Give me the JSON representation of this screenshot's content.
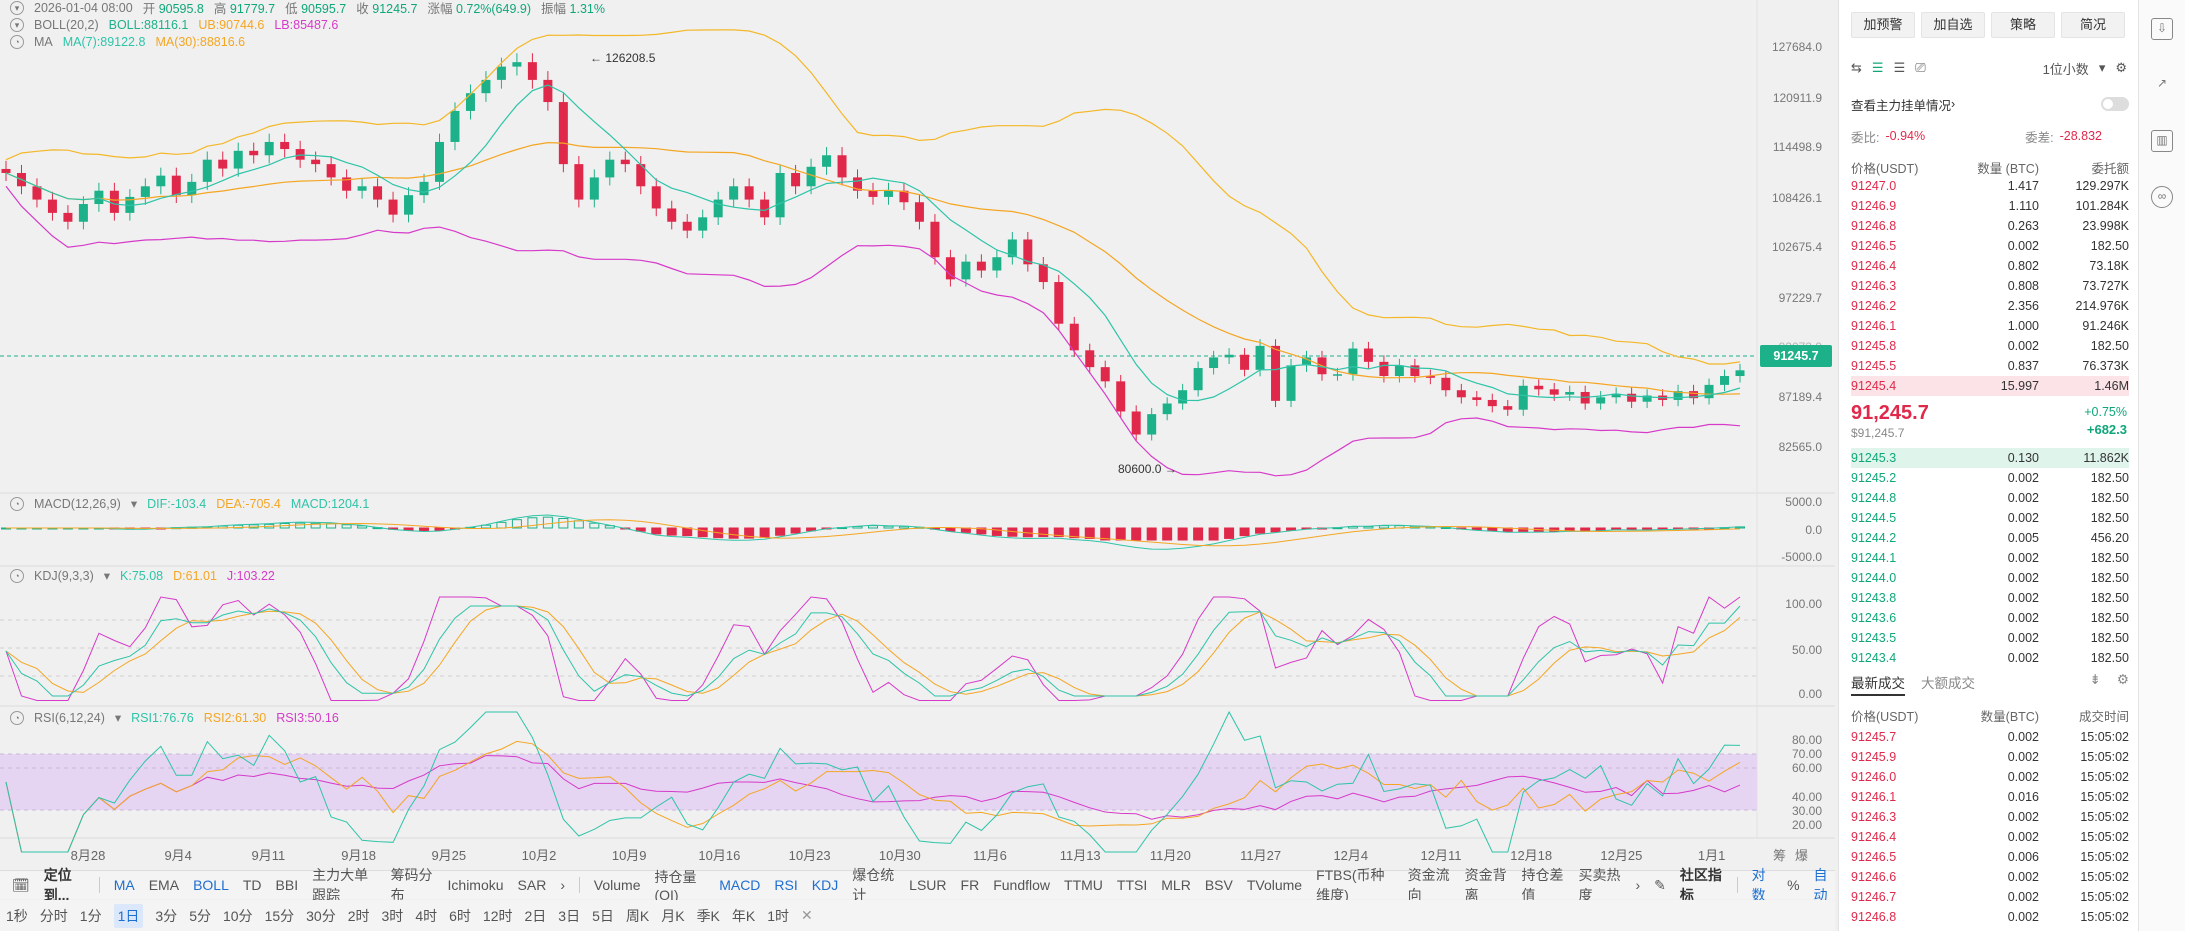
{
  "header": {
    "line1": {
      "date": "2026-01-04 08:00",
      "open_label": "开",
      "open": "90595.8",
      "high_label": "高",
      "high": "91779.7",
      "low_label": "低",
      "low": "90595.7",
      "close_label": "收",
      "close": "91245.7",
      "change_label": "涨幅",
      "change": "0.72%(649.9)",
      "amp_label": "振幅",
      "amp": "1.31%"
    },
    "boll": {
      "name": "BOLL(20,2)",
      "val": "BOLL:88116.1",
      "ub": "UB:90744.6",
      "lb": "LB:85487.6"
    },
    "ma": {
      "name": "MA",
      "ma7": "MA(7):89122.8",
      "ma30": "MA(30):88816.6"
    }
  },
  "price_axis": [
    "127684.0",
    "120911.9",
    "114498.9",
    "108426.1",
    "102675.4",
    "97229.7",
    "92072.9",
    "87189.4",
    "82565.0"
  ],
  "current_price_tag": "91245.7",
  "annotations": {
    "high": "126208.5",
    "low": "80600.0"
  },
  "macd": {
    "name": "MACD(12,26,9)",
    "dif": "DIF:-103.4",
    "dea": "DEA:-705.4",
    "macd": "MACD:1204.1",
    "axis": [
      "5000.0",
      "0.0",
      "-5000.0"
    ]
  },
  "kdj": {
    "name": "KDJ(9,3,3)",
    "k": "K:75.08",
    "d": "D:61.01",
    "j": "J:103.22",
    "axis": [
      "100.00",
      "50.00",
      "0.00"
    ]
  },
  "rsi": {
    "name": "RSI(6,12,24)",
    "r1": "RSI1:76.76",
    "r2": "RSI2:61.30",
    "r3": "RSI3:50.16",
    "axis": [
      "80.00",
      "70.00",
      "60.00",
      "40.00",
      "30.00",
      "20.00"
    ]
  },
  "x_axis": [
    "8月28",
    "9月4",
    "9月11",
    "9月18",
    "9月25",
    "10月2",
    "10月9",
    "10月16",
    "10月23",
    "10月30",
    "11月6",
    "11月13",
    "11月20",
    "11月27",
    "12月4",
    "12月11",
    "12月18",
    "12月25",
    "1月1"
  ],
  "axis_corner": [
    "筹",
    "爆"
  ],
  "toolbar1": {
    "locate": "定位到...",
    "main": [
      "MA",
      "EMA",
      "BOLL",
      "TD",
      "BBI",
      "主力大单跟踪",
      "筹码分布",
      "Ichimoku",
      "SAR"
    ],
    "sub": [
      "Volume",
      "持仓量(OI)",
      "MACD",
      "RSI",
      "KDJ",
      "爆仓统计",
      "LSUR",
      "FR",
      "Fundflow",
      "TTMU",
      "TTSI",
      "MLR",
      "BSV",
      "TVolume",
      "FTBS(币种维度)",
      "资金流向",
      "资金背离",
      "持仓差值",
      "买卖热度"
    ],
    "community": "社区指标",
    "right": [
      "对数",
      "%",
      "自动"
    ]
  },
  "toolbar2": [
    "1秒",
    "分时",
    "1分",
    "1日",
    "3分",
    "5分",
    "10分",
    "15分",
    "30分",
    "2时",
    "3时",
    "4时",
    "6时",
    "12时",
    "2日",
    "3日",
    "5日",
    "周K",
    "月K",
    "季K",
    "年K",
    "1时"
  ],
  "panel": {
    "buttons": [
      "加预警",
      "加自选",
      "策略",
      "简况"
    ],
    "decimals": "1位小数",
    "orderbook_link": "查看主力挂单情况",
    "ratio_label": "委比:",
    "ratio": "-0.94%",
    "diff_label": "委差:",
    "diff": "-28.832",
    "headers": [
      "价格(USDT)",
      "数量 (BTC)",
      "委托额"
    ],
    "asks": [
      [
        "91247.0",
        "1.417",
        "129.297K"
      ],
      [
        "91246.9",
        "1.110",
        "101.284K"
      ],
      [
        "91246.8",
        "0.263",
        "23.998K"
      ],
      [
        "91246.5",
        "0.002",
        "182.50"
      ],
      [
        "91246.4",
        "0.802",
        "73.18K"
      ],
      [
        "91246.3",
        "0.808",
        "73.727K"
      ],
      [
        "91246.2",
        "2.356",
        "214.976K"
      ],
      [
        "91246.1",
        "1.000",
        "91.246K"
      ],
      [
        "91245.8",
        "0.002",
        "182.50"
      ],
      [
        "91245.5",
        "0.837",
        "76.373K"
      ],
      [
        "91245.4",
        "15.997",
        "1.46M"
      ]
    ],
    "last_price": "91,245.7",
    "last_usd": "$91,245.7",
    "last_change_pct": "+0.75%",
    "last_change": "+682.3",
    "bids": [
      [
        "91245.3",
        "0.130",
        "11.862K"
      ],
      [
        "91245.2",
        "0.002",
        "182.50"
      ],
      [
        "91244.8",
        "0.002",
        "182.50"
      ],
      [
        "91244.5",
        "0.002",
        "182.50"
      ],
      [
        "91244.2",
        "0.005",
        "456.20"
      ],
      [
        "91244.1",
        "0.002",
        "182.50"
      ],
      [
        "91244.0",
        "0.002",
        "182.50"
      ],
      [
        "91243.8",
        "0.002",
        "182.50"
      ],
      [
        "91243.6",
        "0.002",
        "182.50"
      ],
      [
        "91243.5",
        "0.002",
        "182.50"
      ],
      [
        "91243.4",
        "0.002",
        "182.50"
      ]
    ],
    "trades_tabs": [
      "最新成交",
      "大额成交"
    ],
    "trades_headers": [
      "价格(USDT)",
      "数量(BTC)",
      "成交时间"
    ],
    "trades": [
      [
        "91245.7",
        "0.002",
        "15:05:02"
      ],
      [
        "91245.9",
        "0.002",
        "15:05:02"
      ],
      [
        "91246.0",
        "0.002",
        "15:05:02"
      ],
      [
        "91246.1",
        "0.016",
        "15:05:02"
      ],
      [
        "91246.3",
        "0.002",
        "15:05:02"
      ],
      [
        "91246.4",
        "0.002",
        "15:05:02"
      ],
      [
        "91246.5",
        "0.006",
        "15:05:02"
      ],
      [
        "91246.6",
        "0.002",
        "15:05:02"
      ],
      [
        "91246.7",
        "0.002",
        "15:05:02"
      ],
      [
        "91246.8",
        "0.002",
        "15:05:02"
      ]
    ]
  },
  "colors": {
    "up": "#1db18a",
    "down": "#e0294a",
    "ma7": "#2ec4a8",
    "ma30": "#f4a623",
    "boll_ub": "#f4b728",
    "boll_lb": "#d63ac9"
  }
}
